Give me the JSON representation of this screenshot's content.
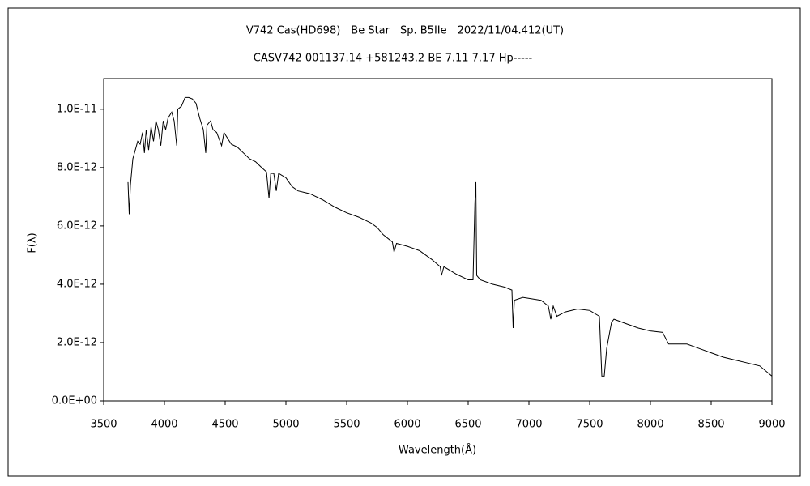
{
  "chart_data": {
    "type": "line",
    "title": "V742 Cas(HD698)　Be Star　Sp. B5IIe　2022/11/04.412(UT)",
    "subtitle": "CASV742 001137.14 +581243.2 BE 7.11 7.17 Hp-----",
    "x_label": "Wavelength(Å)",
    "y_label": "F(λ)",
    "xlim": [
      3500,
      9000
    ],
    "xticks": [
      3500,
      4000,
      4500,
      5000,
      5500,
      6000,
      6500,
      7000,
      7500,
      8000,
      8500,
      9000
    ],
    "ylim": [
      0,
      1.105e-11
    ],
    "yticks": [
      {
        "value": 0,
        "label": "0.0E+00"
      },
      {
        "value": 2e-12,
        "label": "2.0E-12"
      },
      {
        "value": 4e-12,
        "label": "4.0E-12"
      },
      {
        "value": 6e-12,
        "label": "6.0E-12"
      },
      {
        "value": 8e-12,
        "label": "8.0E-12"
      },
      {
        "value": 1e-11,
        "label": "1.0E-11"
      }
    ],
    "color": "#000000",
    "x": [
      3700,
      3710,
      3720,
      3740,
      3760,
      3780,
      3800,
      3820,
      3835,
      3850,
      3870,
      3890,
      3910,
      3930,
      3950,
      3970,
      3990,
      4010,
      4030,
      4060,
      4080,
      4101,
      4110,
      4140,
      4170,
      4200,
      4230,
      4260,
      4290,
      4320,
      4340,
      4350,
      4380,
      4400,
      4430,
      4471,
      4490,
      4550,
      4600,
      4650,
      4700,
      4750,
      4800,
      4840,
      4861,
      4875,
      4900,
      4921,
      4940,
      5000,
      5050,
      5100,
      5200,
      5300,
      5400,
      5500,
      5600,
      5700,
      5750,
      5800,
      5876,
      5890,
      5910,
      6000,
      6100,
      6200,
      6270,
      6280,
      6300,
      6400,
      6500,
      6540,
      6555,
      6563,
      6570,
      6600,
      6700,
      6800,
      6860,
      6870,
      6880,
      6950,
      7100,
      7160,
      7180,
      7200,
      7230,
      7300,
      7400,
      7500,
      7580,
      7600,
      7620,
      7640,
      7680,
      7700,
      7800,
      7900,
      8000,
      8100,
      8150,
      8200,
      8300,
      8400,
      8500,
      8600,
      8700,
      8800,
      8900,
      9000
    ],
    "values": [
      7.5e-12,
      6.4e-12,
      7.4e-12,
      8.3e-12,
      8.6e-12,
      8.9e-12,
      8.8e-12,
      9.2e-12,
      8.5e-12,
      9.3e-12,
      8.6e-12,
      9.4e-12,
      8.9e-12,
      9.6e-12,
      9.3e-12,
      8.75e-12,
      9.6e-12,
      9.3e-12,
      9.7e-12,
      9.9e-12,
      9.6e-12,
      8.75e-12,
      1e-11,
      1.01e-11,
      1.04e-11,
      1.04e-11,
      1.035e-11,
      1.02e-11,
      9.7e-12,
      9.3e-12,
      8.5e-12,
      9.45e-12,
      9.6e-12,
      9.3e-12,
      9.2e-12,
      8.75e-12,
      9.2e-12,
      8.8e-12,
      8.7e-12,
      8.5e-12,
      8.3e-12,
      8.2e-12,
      8e-12,
      7.85e-12,
      6.95e-12,
      7.8e-12,
      7.8e-12,
      7.2e-12,
      7.8e-12,
      7.65e-12,
      7.35e-12,
      7.2e-12,
      7.1e-12,
      6.9e-12,
      6.65e-12,
      6.45e-12,
      6.3e-12,
      6.1e-12,
      5.95e-12,
      5.7e-12,
      5.45e-12,
      5.1e-12,
      5.4e-12,
      5.3e-12,
      5.15e-12,
      4.85e-12,
      4.6e-12,
      4.3e-12,
      4.6e-12,
      4.35e-12,
      4.15e-12,
      4.15e-12,
      6.8e-12,
      7.5e-12,
      4.3e-12,
      4.15e-12,
      4e-12,
      3.9e-12,
      3.8e-12,
      2.5e-12,
      3.45e-12,
      3.55e-12,
      3.45e-12,
      3.25e-12,
      2.8e-12,
      3.25e-12,
      2.9e-12,
      3.05e-12,
      3.15e-12,
      3.1e-12,
      2.9e-12,
      8.5e-13,
      8.5e-13,
      1.8e-12,
      2.7e-12,
      2.8e-12,
      2.65e-12,
      2.5e-12,
      2.4e-12,
      2.35e-12,
      1.95e-12,
      1.95e-12,
      1.95e-12,
      1.8e-12,
      1.65e-12,
      1.5e-12,
      1.4e-12,
      1.3e-12,
      1.2e-12,
      8.5e-13
    ]
  }
}
